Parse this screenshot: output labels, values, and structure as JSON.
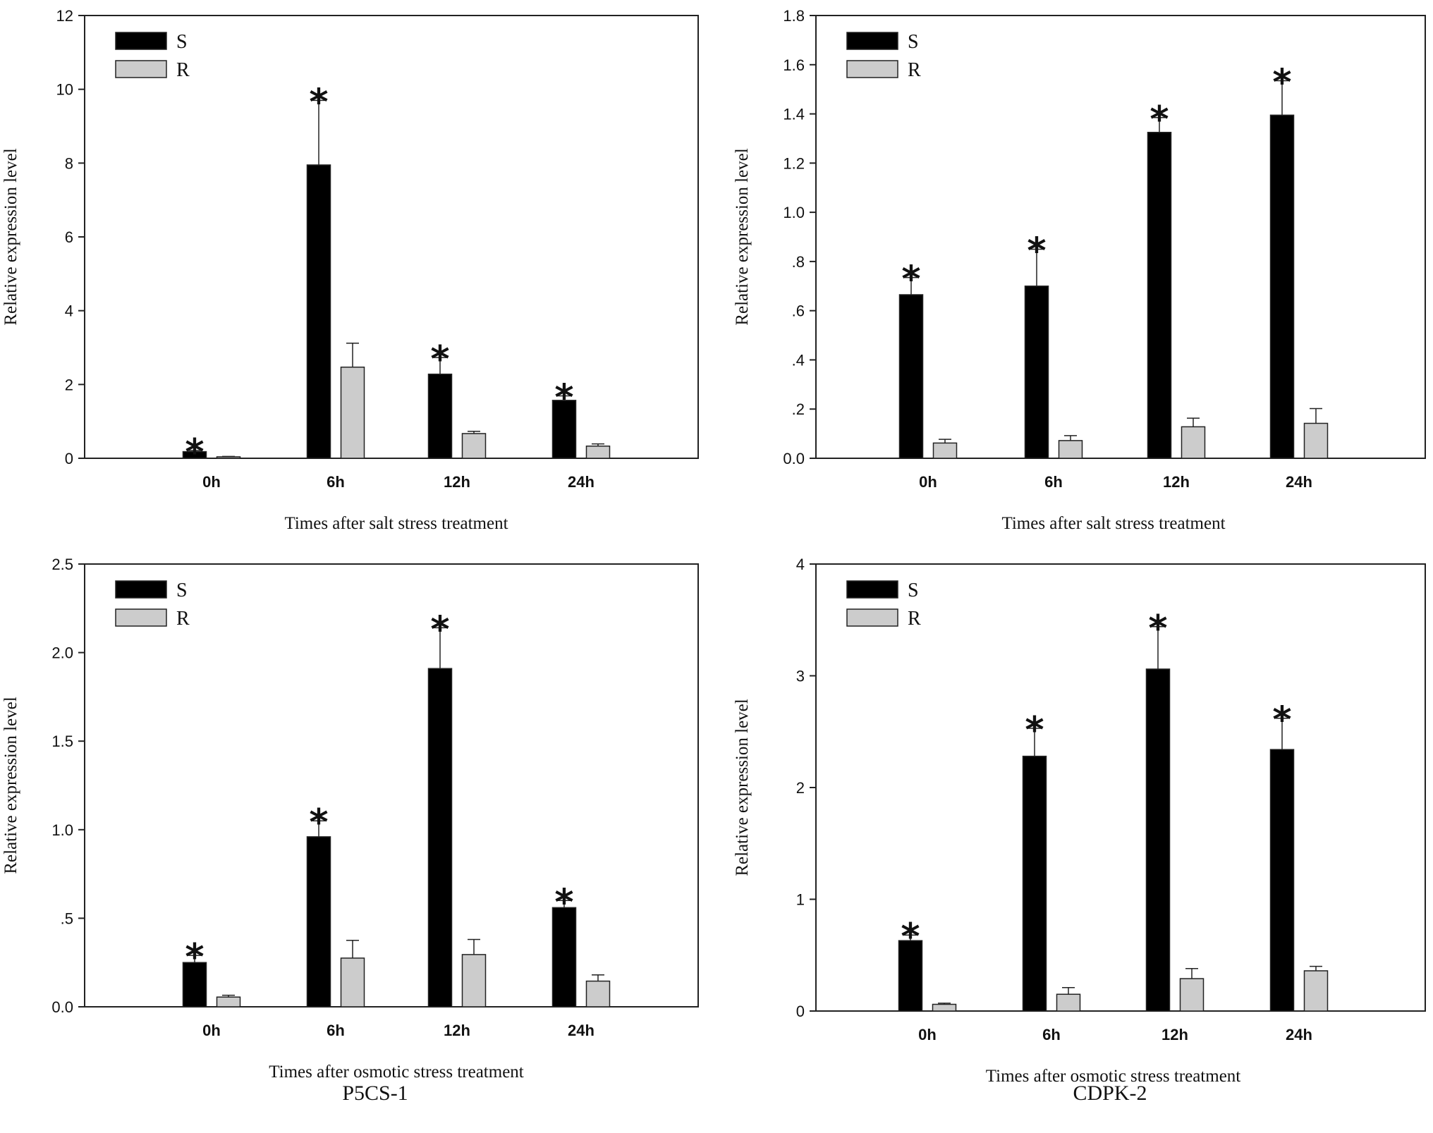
{
  "chart_data": [
    {
      "type": "bar",
      "panel": "top-left",
      "categories": [
        "0h",
        "6h",
        "12h",
        "24h"
      ],
      "series": [
        {
          "name": "S",
          "color": "#000000",
          "values": [
            0.18,
            7.95,
            2.28,
            1.57
          ],
          "errors": [
            0.03,
            1.75,
            0.45,
            0.12
          ]
        },
        {
          "name": "R",
          "color": "#cccccc",
          "values": [
            0.04,
            2.47,
            0.67,
            0.33
          ],
          "errors": [
            0.01,
            0.65,
            0.06,
            0.06
          ]
        }
      ],
      "significance": [
        "*",
        "*",
        "*",
        "*"
      ],
      "xlabel": "Times after salt stress treatment",
      "ylabel": "Relative expression level",
      "ylim": [
        0,
        12
      ],
      "yticks": [
        0,
        2,
        4,
        6,
        8,
        10,
        12
      ],
      "ytick_labels": [
        "0",
        "2",
        "4",
        "6",
        "8",
        "10",
        "12"
      ],
      "legend_position": "top-left"
    },
    {
      "type": "bar",
      "panel": "top-right",
      "categories": [
        "0h",
        "6h",
        "12h",
        "24h"
      ],
      "series": [
        {
          "name": "S",
          "color": "#000000",
          "values": [
            0.665,
            0.7,
            1.325,
            1.395
          ],
          "errors": [
            0.07,
            0.15,
            0.06,
            0.14
          ]
        },
        {
          "name": "R",
          "color": "#cccccc",
          "values": [
            0.062,
            0.072,
            0.128,
            0.142
          ],
          "errors": [
            0.015,
            0.02,
            0.035,
            0.06
          ]
        }
      ],
      "significance": [
        "*",
        "*",
        "*",
        "*"
      ],
      "xlabel": "Times after salt stress treatment",
      "ylabel": "Relative expression level",
      "ylim": [
        0,
        1.8
      ],
      "yticks": [
        0,
        0.2,
        0.4,
        0.6,
        0.8,
        1.0,
        1.2,
        1.4,
        1.6,
        1.8
      ],
      "ytick_labels": [
        "0.0",
        ".2",
        ".4",
        ".6",
        ".8",
        "1.0",
        "1.2",
        "1.4",
        "1.6",
        "1.8"
      ],
      "legend_position": "top-left"
    },
    {
      "type": "bar",
      "panel": "bottom-left",
      "categories": [
        "0h",
        "6h",
        "12h",
        "24h"
      ],
      "series": [
        {
          "name": "S",
          "color": "#000000",
          "values": [
            0.25,
            0.96,
            1.91,
            0.56
          ],
          "errors": [
            0.04,
            0.09,
            0.23,
            0.04
          ]
        },
        {
          "name": "R",
          "color": "#cccccc",
          "values": [
            0.055,
            0.275,
            0.295,
            0.145
          ],
          "errors": [
            0.01,
            0.1,
            0.085,
            0.035
          ]
        }
      ],
      "significance": [
        "*",
        "*",
        "*",
        "*"
      ],
      "xlabel": "Times after osmotic stress treatment",
      "ylabel": "Relative expression level",
      "ylim": [
        0,
        2.5
      ],
      "yticks": [
        0,
        0.5,
        1.0,
        1.5,
        2.0,
        2.5
      ],
      "ytick_labels": [
        "0.0",
        ".5",
        "1.0",
        "1.5",
        "2.0",
        "2.5"
      ],
      "legend_position": "top-left"
    },
    {
      "type": "bar",
      "panel": "bottom-right",
      "categories": [
        "0h",
        "6h",
        "12h",
        "24h"
      ],
      "series": [
        {
          "name": "S",
          "color": "#000000",
          "values": [
            0.63,
            2.28,
            3.06,
            2.34
          ],
          "errors": [
            0.05,
            0.25,
            0.38,
            0.28
          ]
        },
        {
          "name": "R",
          "color": "#cccccc",
          "values": [
            0.06,
            0.15,
            0.29,
            0.36
          ],
          "errors": [
            0.01,
            0.06,
            0.09,
            0.04
          ]
        }
      ],
      "significance": [
        "*",
        "*",
        "*",
        "*"
      ],
      "xlabel": "Times after osmotic stress treatment",
      "ylabel": "Relative expression level",
      "ylim": [
        0,
        4
      ],
      "yticks": [
        0,
        1,
        2,
        3,
        4
      ],
      "ytick_labels": [
        "0",
        "1",
        "2",
        "3",
        "4"
      ],
      "legend_position": "top-left"
    }
  ],
  "gene_labels": {
    "left": "P5CS-1",
    "right": "CDPK-2"
  }
}
